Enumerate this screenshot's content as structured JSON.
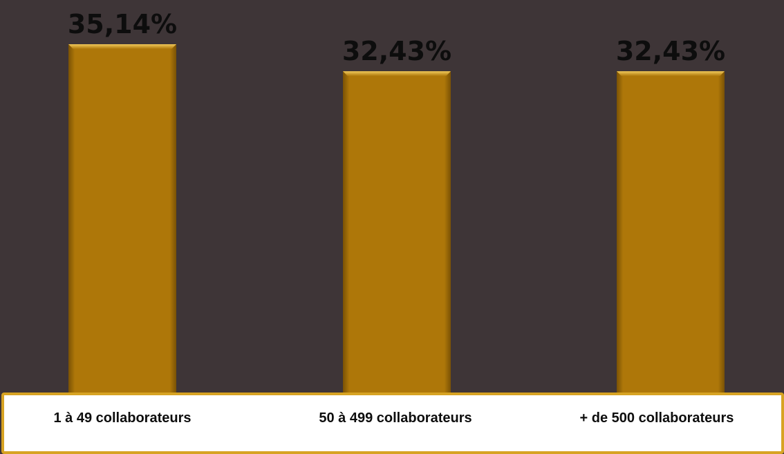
{
  "chart_data": {
    "type": "bar",
    "categories": [
      "1 à 49 collaborateurs",
      "50 à 499 collaborateurs",
      "+ de 500 collaborateurs"
    ],
    "values": [
      35.14,
      32.43,
      32.43
    ],
    "value_labels": [
      "35,14%",
      "32,43%",
      "32,43%"
    ],
    "title": "",
    "xlabel": "",
    "ylabel": "",
    "ylim": [
      0,
      40
    ],
    "grid": false,
    "legend": "none"
  },
  "colors": {
    "background": "#3e3537",
    "bar_fill": "#ae7709",
    "bar_highlight": "#e0b13a",
    "bar_shadow": "#7a5205",
    "axis_panel_fill": "#ffffff",
    "axis_panel_border": "#d7a323",
    "label_text": "#0d0d0d"
  }
}
